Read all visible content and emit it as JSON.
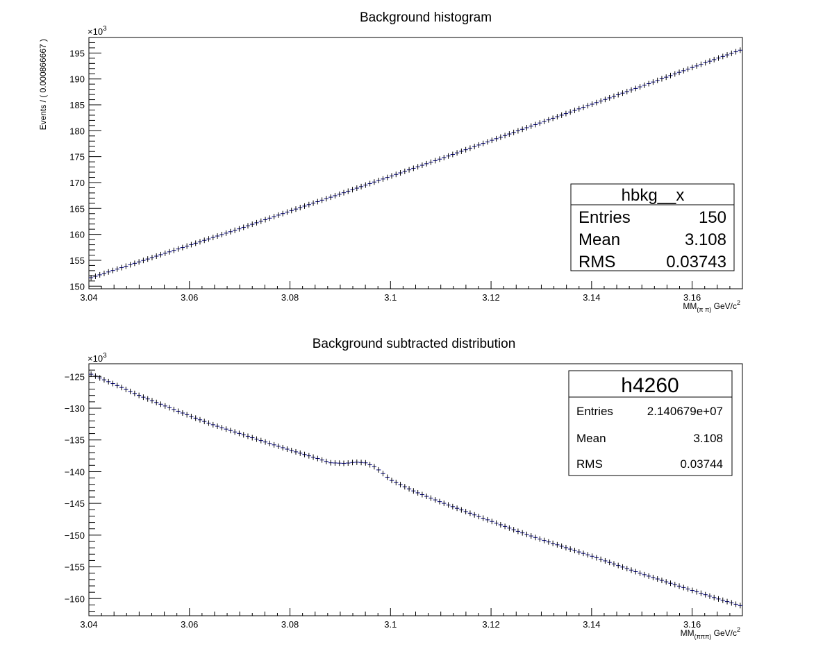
{
  "chart_data": [
    {
      "type": "scatter",
      "title": "Background histogram",
      "xlabel": "MM",
      "xlabel_sub": "(π π)",
      "xlabel_unit": " GeV/c",
      "xlabel_sup": "2",
      "ylabel": "Events / ( 0.000866667 )",
      "y_multiplier": "×10",
      "y_multiplier_exp": "3",
      "xlim": [
        3.04,
        3.17
      ],
      "ylim": [
        149.5,
        198
      ],
      "x_ticks": [
        "3.04",
        "3.06",
        "3.08",
        "3.1",
        "3.12",
        "3.14",
        "3.16"
      ],
      "y_ticks": [
        "150",
        "155",
        "160",
        "165",
        "170",
        "175",
        "180",
        "185",
        "190",
        "195"
      ],
      "n_bins": 150,
      "series": [
        {
          "x": [
            3.04,
            3.05,
            3.06,
            3.07,
            3.08,
            3.09,
            3.1,
            3.11,
            3.12,
            3.13,
            3.14,
            3.15,
            3.16,
            3.17
          ],
          "y": [
            151.5,
            154.7,
            157.9,
            161.1,
            164.5,
            167.8,
            171.2,
            174.6,
            178.1,
            181.6,
            185.1,
            188.6,
            192.2,
            195.7
          ]
        }
      ],
      "stats": {
        "name": "hbkg__x",
        "rows": [
          {
            "label": "Entries",
            "value": "150"
          },
          {
            "label": "Mean",
            "value": "3.108"
          },
          {
            "label": "RMS",
            "value": "0.03743"
          }
        ]
      },
      "marker_color": "#000080"
    },
    {
      "type": "scatter",
      "title": "Background subtracted distribution",
      "xlabel": "MM",
      "xlabel_sub": "(πππ)",
      "xlabel_unit": " GeV/c",
      "xlabel_sup": "2",
      "ylabel": "",
      "y_multiplier": "×10",
      "y_multiplier_exp": "3",
      "xlim": [
        3.04,
        3.17
      ],
      "ylim": [
        -162.7,
        -123
      ],
      "x_ticks": [
        "3.04",
        "3.06",
        "3.08",
        "3.1",
        "3.12",
        "3.14",
        "3.16"
      ],
      "y_ticks": [
        "−160",
        "−155",
        "−150",
        "−145",
        "−140",
        "−135",
        "−130",
        "−125"
      ],
      "n_bins": 150,
      "series": [
        {
          "x": [
            3.04,
            3.045,
            3.05,
            3.055,
            3.06,
            3.065,
            3.07,
            3.075,
            3.08,
            3.085,
            3.088,
            3.091,
            3.093,
            3.095,
            3.097,
            3.1,
            3.105,
            3.11,
            3.115,
            3.12,
            3.125,
            3.13,
            3.135,
            3.14,
            3.145,
            3.15,
            3.155,
            3.16,
            3.165,
            3.17
          ],
          "y": [
            -124.5,
            -126.2,
            -128.0,
            -129.6,
            -131.2,
            -132.7,
            -134.0,
            -135.3,
            -136.6,
            -137.8,
            -138.6,
            -138.7,
            -138.5,
            -138.6,
            -139.3,
            -141.3,
            -143.2,
            -144.8,
            -146.3,
            -147.8,
            -149.3,
            -150.7,
            -152.0,
            -153.3,
            -154.7,
            -156.1,
            -157.4,
            -158.7,
            -160.0,
            -161.2
          ]
        }
      ],
      "stats": {
        "name": "h4260",
        "rows": [
          {
            "label": "Entries",
            "value": "2.140679e+07"
          },
          {
            "label": "Mean",
            "value": "3.108"
          },
          {
            "label": "RMS",
            "value": "0.03744"
          }
        ]
      },
      "marker_color": "#000080"
    }
  ]
}
